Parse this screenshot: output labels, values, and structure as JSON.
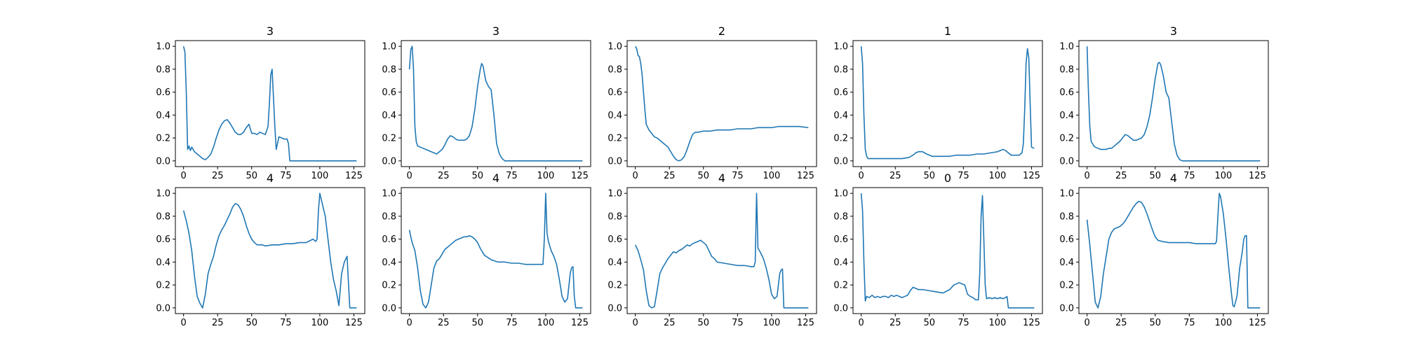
{
  "line_color": "#1f77b4",
  "chart_data": [
    {
      "type": "line",
      "title": "3",
      "xlim": [
        -6,
        133
      ],
      "ylim": [
        -0.05,
        1.05
      ],
      "xticks": [
        0,
        25,
        50,
        75,
        100,
        125
      ],
      "yticks": [
        0.0,
        0.2,
        0.4,
        0.6,
        0.8,
        1.0
      ],
      "x": [
        0,
        1,
        2,
        3,
        4,
        5,
        6,
        8,
        10,
        12,
        14,
        16,
        18,
        20,
        22,
        24,
        26,
        28,
        30,
        32,
        34,
        36,
        38,
        40,
        42,
        44,
        46,
        48,
        50,
        52,
        54,
        56,
        58,
        60,
        62,
        63,
        64,
        65,
        66,
        67,
        68,
        70,
        72,
        74,
        76,
        77,
        78,
        80,
        127
      ],
      "y": [
        1.0,
        0.95,
        0.6,
        0.1,
        0.13,
        0.09,
        0.12,
        0.08,
        0.06,
        0.04,
        0.02,
        0.01,
        0.03,
        0.06,
        0.12,
        0.2,
        0.27,
        0.32,
        0.35,
        0.36,
        0.33,
        0.29,
        0.25,
        0.23,
        0.23,
        0.25,
        0.29,
        0.32,
        0.24,
        0.24,
        0.23,
        0.25,
        0.24,
        0.23,
        0.3,
        0.5,
        0.75,
        0.8,
        0.55,
        0.3,
        0.1,
        0.21,
        0.2,
        0.19,
        0.19,
        0.15,
        0.0,
        0.0,
        0.0
      ]
    },
    {
      "type": "line",
      "title": "3",
      "xlim": [
        -6,
        133
      ],
      "ylim": [
        -0.05,
        1.05
      ],
      "xticks": [
        0,
        25,
        50,
        75,
        100,
        125
      ],
      "yticks": [
        0.0,
        0.2,
        0.4,
        0.6,
        0.8,
        1.0
      ],
      "x": [
        0,
        1,
        2,
        3,
        4,
        5,
        6,
        8,
        10,
        12,
        14,
        16,
        18,
        20,
        22,
        24,
        26,
        28,
        30,
        32,
        34,
        36,
        38,
        40,
        42,
        44,
        46,
        48,
        50,
        52,
        53,
        54,
        56,
        58,
        60,
        62,
        64,
        66,
        68,
        70,
        72,
        74,
        127
      ],
      "y": [
        0.8,
        0.97,
        1.0,
        0.8,
        0.3,
        0.17,
        0.13,
        0.12,
        0.11,
        0.1,
        0.09,
        0.08,
        0.07,
        0.06,
        0.08,
        0.1,
        0.14,
        0.19,
        0.22,
        0.21,
        0.19,
        0.18,
        0.18,
        0.18,
        0.19,
        0.22,
        0.3,
        0.45,
        0.65,
        0.8,
        0.85,
        0.83,
        0.7,
        0.65,
        0.62,
        0.4,
        0.15,
        0.06,
        0.02,
        0.0,
        0.0,
        0.0,
        0.0
      ]
    },
    {
      "type": "line",
      "title": "2",
      "xlim": [
        -6,
        133
      ],
      "ylim": [
        -0.05,
        1.05
      ],
      "xticks": [
        0,
        25,
        50,
        75,
        100,
        125
      ],
      "yticks": [
        0.0,
        0.2,
        0.4,
        0.6,
        0.8,
        1.0
      ],
      "x": [
        0,
        1,
        2,
        3,
        4,
        5,
        6,
        7,
        8,
        10,
        12,
        14,
        16,
        18,
        20,
        22,
        24,
        26,
        28,
        30,
        32,
        34,
        36,
        38,
        40,
        42,
        44,
        46,
        50,
        55,
        60,
        65,
        70,
        75,
        80,
        85,
        90,
        95,
        100,
        105,
        110,
        115,
        120,
        127
      ],
      "y": [
        1.0,
        0.98,
        0.92,
        0.91,
        0.85,
        0.75,
        0.6,
        0.45,
        0.32,
        0.27,
        0.24,
        0.21,
        0.2,
        0.18,
        0.16,
        0.14,
        0.12,
        0.08,
        0.04,
        0.01,
        0.0,
        0.01,
        0.04,
        0.1,
        0.17,
        0.23,
        0.25,
        0.25,
        0.26,
        0.26,
        0.27,
        0.27,
        0.27,
        0.28,
        0.28,
        0.28,
        0.29,
        0.29,
        0.29,
        0.3,
        0.3,
        0.3,
        0.3,
        0.29
      ]
    },
    {
      "type": "line",
      "title": "1",
      "xlim": [
        -6,
        133
      ],
      "ylim": [
        -0.05,
        1.05
      ],
      "xticks": [
        0,
        25,
        50,
        75,
        100,
        125
      ],
      "yticks": [
        0.0,
        0.2,
        0.4,
        0.6,
        0.8,
        1.0
      ],
      "x": [
        0,
        1,
        2,
        3,
        4,
        5,
        6,
        8,
        10,
        15,
        20,
        25,
        30,
        35,
        38,
        40,
        42,
        45,
        48,
        50,
        52,
        55,
        60,
        65,
        70,
        75,
        80,
        85,
        90,
        95,
        100,
        102,
        104,
        106,
        108,
        110,
        112,
        114,
        116,
        118,
        119,
        120,
        121,
        122,
        123,
        124,
        125,
        127
      ],
      "y": [
        1.0,
        0.85,
        0.4,
        0.1,
        0.04,
        0.02,
        0.02,
        0.02,
        0.02,
        0.02,
        0.02,
        0.02,
        0.02,
        0.03,
        0.05,
        0.07,
        0.08,
        0.08,
        0.06,
        0.05,
        0.04,
        0.04,
        0.04,
        0.04,
        0.05,
        0.05,
        0.05,
        0.06,
        0.06,
        0.07,
        0.08,
        0.09,
        0.1,
        0.09,
        0.07,
        0.05,
        0.05,
        0.05,
        0.05,
        0.07,
        0.15,
        0.45,
        0.85,
        0.98,
        0.9,
        0.5,
        0.12,
        0.11
      ]
    },
    {
      "type": "line",
      "title": "3",
      "xlim": [
        -6,
        133
      ],
      "ylim": [
        -0.05,
        1.05
      ],
      "xticks": [
        0,
        25,
        50,
        75,
        100,
        125
      ],
      "yticks": [
        0.0,
        0.2,
        0.4,
        0.6,
        0.8,
        1.0
      ],
      "x": [
        0,
        1,
        2,
        3,
        4,
        5,
        6,
        8,
        10,
        12,
        14,
        16,
        18,
        20,
        22,
        24,
        26,
        28,
        30,
        32,
        34,
        36,
        38,
        40,
        42,
        44,
        46,
        48,
        50,
        52,
        53,
        54,
        56,
        58,
        60,
        62,
        64,
        66,
        68,
        70,
        72,
        127
      ],
      "y": [
        1.0,
        0.6,
        0.3,
        0.17,
        0.15,
        0.13,
        0.12,
        0.11,
        0.1,
        0.1,
        0.1,
        0.11,
        0.11,
        0.13,
        0.15,
        0.17,
        0.2,
        0.23,
        0.22,
        0.2,
        0.18,
        0.18,
        0.19,
        0.2,
        0.23,
        0.3,
        0.4,
        0.55,
        0.72,
        0.85,
        0.86,
        0.84,
        0.74,
        0.6,
        0.55,
        0.35,
        0.15,
        0.05,
        0.01,
        0.0,
        0.0,
        0.0
      ]
    },
    {
      "type": "line",
      "title": "4",
      "xlim": [
        -6,
        133
      ],
      "ylim": [
        -0.05,
        1.05
      ],
      "xticks": [
        0,
        25,
        50,
        75,
        100,
        125
      ],
      "yticks": [
        0.0,
        0.2,
        0.4,
        0.6,
        0.8,
        1.0
      ],
      "x": [
        0,
        2,
        4,
        6,
        8,
        10,
        12,
        14,
        16,
        18,
        20,
        22,
        24,
        26,
        28,
        30,
        32,
        34,
        36,
        38,
        40,
        42,
        44,
        46,
        48,
        50,
        52,
        54,
        56,
        58,
        60,
        65,
        70,
        75,
        80,
        85,
        90,
        95,
        97,
        98,
        99,
        100,
        102,
        104,
        106,
        108,
        110,
        112,
        114,
        116,
        118,
        120,
        122,
        123,
        124,
        126,
        127
      ],
      "y": [
        0.85,
        0.76,
        0.65,
        0.5,
        0.28,
        0.1,
        0.04,
        0.0,
        0.12,
        0.3,
        0.38,
        0.45,
        0.55,
        0.63,
        0.68,
        0.72,
        0.77,
        0.82,
        0.88,
        0.91,
        0.9,
        0.86,
        0.8,
        0.72,
        0.65,
        0.6,
        0.57,
        0.55,
        0.55,
        0.55,
        0.54,
        0.55,
        0.55,
        0.56,
        0.56,
        0.57,
        0.57,
        0.6,
        0.58,
        0.6,
        0.85,
        1.0,
        0.9,
        0.8,
        0.6,
        0.4,
        0.25,
        0.15,
        0.02,
        0.3,
        0.4,
        0.45,
        0.0,
        0.0,
        0.0,
        0.0,
        0.0
      ]
    },
    {
      "type": "line",
      "title": "4",
      "xlim": [
        -6,
        133
      ],
      "ylim": [
        -0.05,
        1.05
      ],
      "xticks": [
        0,
        25,
        50,
        75,
        100,
        125
      ],
      "yticks": [
        0.0,
        0.2,
        0.4,
        0.6,
        0.8,
        1.0
      ],
      "x": [
        0,
        1,
        2,
        4,
        6,
        8,
        10,
        12,
        14,
        16,
        18,
        20,
        22,
        24,
        26,
        28,
        30,
        32,
        34,
        36,
        38,
        40,
        42,
        44,
        46,
        48,
        50,
        52,
        55,
        60,
        65,
        70,
        75,
        80,
        85,
        90,
        95,
        98,
        99,
        100,
        101,
        102,
        104,
        106,
        108,
        110,
        112,
        114,
        116,
        118,
        119,
        120,
        121,
        122,
        124,
        127
      ],
      "y": [
        0.68,
        0.62,
        0.57,
        0.5,
        0.35,
        0.15,
        0.03,
        0.0,
        0.05,
        0.2,
        0.35,
        0.41,
        0.43,
        0.47,
        0.51,
        0.53,
        0.55,
        0.57,
        0.59,
        0.6,
        0.61,
        0.62,
        0.62,
        0.63,
        0.62,
        0.6,
        0.57,
        0.52,
        0.46,
        0.42,
        0.4,
        0.4,
        0.39,
        0.39,
        0.38,
        0.38,
        0.38,
        0.38,
        0.6,
        1.0,
        0.65,
        0.58,
        0.5,
        0.45,
        0.38,
        0.25,
        0.1,
        0.05,
        0.08,
        0.3,
        0.35,
        0.36,
        0.1,
        0.0,
        0.0,
        0.0
      ]
    },
    {
      "type": "line",
      "title": "4",
      "xlim": [
        -6,
        133
      ],
      "ylim": [
        -0.05,
        1.05
      ],
      "xticks": [
        0,
        25,
        50,
        75,
        100,
        125
      ],
      "yticks": [
        0.0,
        0.2,
        0.4,
        0.6,
        0.8,
        1.0
      ],
      "x": [
        0,
        2,
        4,
        6,
        8,
        10,
        12,
        14,
        16,
        18,
        20,
        22,
        24,
        26,
        28,
        30,
        32,
        34,
        36,
        38,
        40,
        42,
        44,
        46,
        48,
        50,
        52,
        54,
        56,
        58,
        60,
        65,
        70,
        75,
        80,
        85,
        87,
        88,
        89,
        90,
        92,
        94,
        96,
        98,
        100,
        102,
        104,
        106,
        107,
        108,
        109,
        110,
        127
      ],
      "y": [
        0.55,
        0.5,
        0.42,
        0.33,
        0.15,
        0.02,
        0.0,
        0.01,
        0.15,
        0.3,
        0.35,
        0.39,
        0.43,
        0.46,
        0.49,
        0.48,
        0.5,
        0.51,
        0.53,
        0.55,
        0.54,
        0.56,
        0.57,
        0.58,
        0.59,
        0.57,
        0.55,
        0.5,
        0.45,
        0.43,
        0.4,
        0.39,
        0.38,
        0.37,
        0.37,
        0.36,
        0.36,
        0.4,
        1.0,
        0.52,
        0.48,
        0.43,
        0.35,
        0.25,
        0.12,
        0.08,
        0.1,
        0.3,
        0.33,
        0.34,
        0.0,
        0.0,
        0.0
      ]
    },
    {
      "type": "line",
      "title": "0",
      "xlim": [
        -6,
        133
      ],
      "ylim": [
        -0.05,
        1.05
      ],
      "xticks": [
        0,
        25,
        50,
        75,
        100,
        125
      ],
      "yticks": [
        0.0,
        0.2,
        0.4,
        0.6,
        0.8,
        1.0
      ],
      "x": [
        0,
        1,
        2,
        3,
        4,
        6,
        8,
        10,
        12,
        14,
        16,
        18,
        20,
        22,
        24,
        26,
        28,
        30,
        32,
        34,
        36,
        38,
        40,
        42,
        45,
        50,
        55,
        60,
        65,
        68,
        70,
        72,
        74,
        76,
        78,
        80,
        82,
        84,
        86,
        87,
        88,
        89,
        90,
        91,
        92,
        94,
        96,
        98,
        100,
        102,
        104,
        106,
        107,
        108,
        110,
        127
      ],
      "y": [
        1.0,
        0.85,
        0.4,
        0.06,
        0.1,
        0.09,
        0.11,
        0.09,
        0.1,
        0.09,
        0.1,
        0.1,
        0.09,
        0.11,
        0.1,
        0.11,
        0.1,
        0.09,
        0.1,
        0.11,
        0.15,
        0.18,
        0.17,
        0.16,
        0.16,
        0.15,
        0.14,
        0.13,
        0.16,
        0.2,
        0.21,
        0.22,
        0.21,
        0.2,
        0.12,
        0.1,
        0.09,
        0.07,
        0.07,
        0.3,
        0.8,
        0.98,
        0.6,
        0.2,
        0.08,
        0.09,
        0.08,
        0.09,
        0.08,
        0.09,
        0.08,
        0.09,
        0.1,
        0.0,
        0.0,
        0.0
      ]
    },
    {
      "type": "line",
      "title": "4",
      "xlim": [
        -6,
        133
      ],
      "ylim": [
        -0.05,
        1.05
      ],
      "xticks": [
        0,
        25,
        50,
        75,
        100,
        125
      ],
      "yticks": [
        0.0,
        0.2,
        0.4,
        0.6,
        0.8,
        1.0
      ],
      "x": [
        0,
        2,
        4,
        6,
        8,
        10,
        12,
        14,
        16,
        18,
        20,
        22,
        24,
        26,
        28,
        30,
        32,
        34,
        36,
        38,
        40,
        42,
        44,
        46,
        48,
        50,
        52,
        55,
        60,
        65,
        70,
        75,
        80,
        85,
        90,
        94,
        95,
        96,
        97,
        98,
        100,
        102,
        104,
        106,
        107,
        108,
        110,
        112,
        113,
        114,
        115,
        116,
        117,
        118,
        120,
        127
      ],
      "y": [
        0.77,
        0.55,
        0.3,
        0.05,
        0.0,
        0.1,
        0.3,
        0.45,
        0.6,
        0.66,
        0.69,
        0.7,
        0.71,
        0.73,
        0.76,
        0.8,
        0.84,
        0.88,
        0.91,
        0.93,
        0.92,
        0.88,
        0.82,
        0.75,
        0.68,
        0.62,
        0.59,
        0.58,
        0.57,
        0.57,
        0.57,
        0.57,
        0.56,
        0.56,
        0.56,
        0.56,
        0.58,
        0.8,
        1.0,
        0.97,
        0.82,
        0.6,
        0.35,
        0.12,
        0.02,
        0.01,
        0.1,
        0.35,
        0.42,
        0.5,
        0.6,
        0.63,
        0.63,
        0.0,
        0.0,
        0.0
      ]
    }
  ]
}
